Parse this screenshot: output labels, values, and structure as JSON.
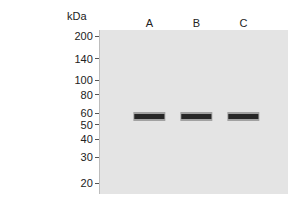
{
  "chart_data": {
    "type": "blot",
    "y_label": "kDa",
    "categories": [
      "A",
      "B",
      "C"
    ],
    "values": [
      57,
      57,
      57
    ],
    "color": "#262626",
    "log": "y",
    "ylim": [
      17,
      220
    ],
    "yticks": [
      20,
      30,
      40,
      50,
      60,
      80,
      100,
      140,
      200
    ],
    "grid": false
  }
}
